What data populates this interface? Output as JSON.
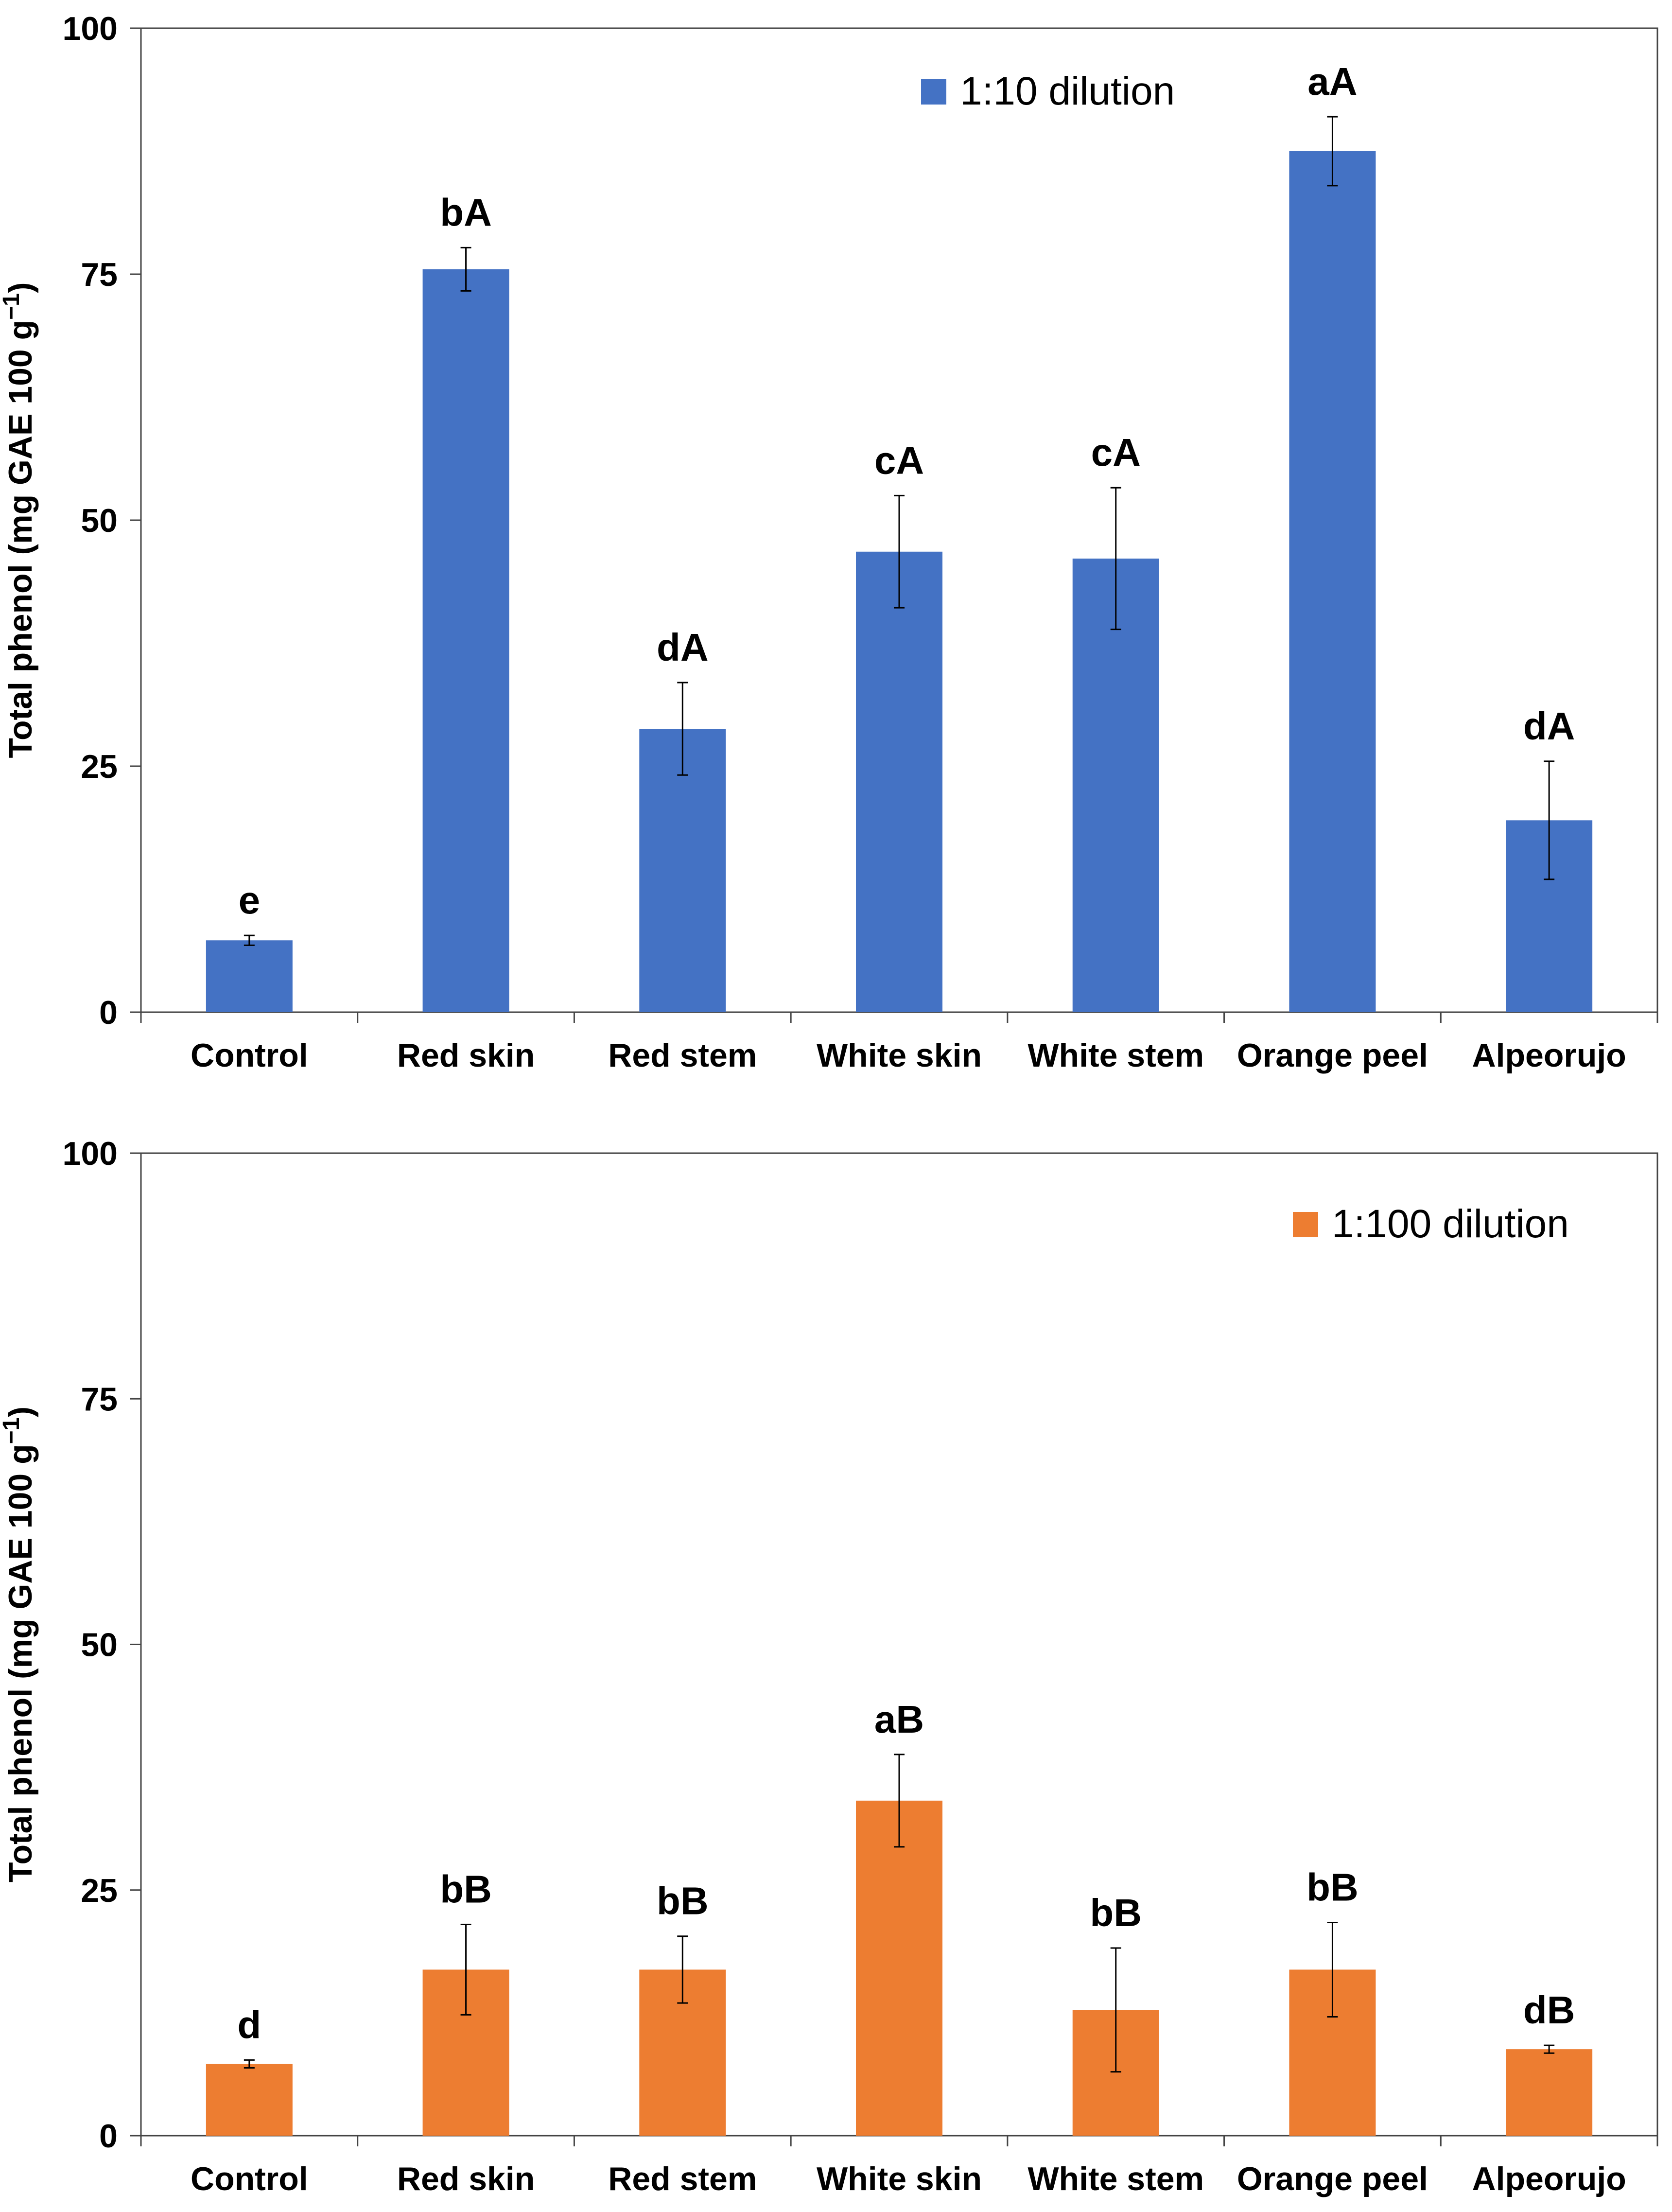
{
  "chart_data": [
    {
      "type": "bar",
      "categories": [
        "Control",
        "Red skin",
        "Red stem",
        "White skin",
        "White stem",
        "Orange peel",
        "Alpeorujo"
      ],
      "series": [
        {
          "name": "1:10 dilution",
          "color": "#4472C4",
          "values": [
            7.3,
            75.5,
            28.8,
            46.8,
            46.1,
            87.5,
            19.5
          ],
          "errors": [
            0.5,
            2.2,
            4.7,
            5.7,
            7.2,
            3.5,
            6.0
          ],
          "labels": [
            "e",
            "bA",
            "dA",
            "cA",
            "cA",
            "aA",
            "dA"
          ]
        }
      ],
      "ylabel": "Total phenol (mg GAE 100 g",
      "ylabel_sup": "−1",
      "ylabel_close": ")",
      "ylim": [
        0,
        100
      ],
      "yticks": [
        "0",
        "25",
        "50",
        "75",
        "100"
      ],
      "legend": "top-right"
    },
    {
      "type": "bar",
      "categories": [
        "Control",
        "Red skin",
        "Red stem",
        "White skin",
        "White stem",
        "Orange peel",
        "Alpeorujo"
      ],
      "series": [
        {
          "name": "1:100 dilution",
          "color": "#ED7D31",
          "values": [
            7.3,
            16.9,
            16.9,
            34.1,
            12.8,
            16.9,
            8.8
          ],
          "errors": [
            0.4,
            4.6,
            3.4,
            4.7,
            6.3,
            4.8,
            0.4
          ],
          "labels": [
            "d",
            "bB",
            "bB",
            "aB",
            "bB",
            "bB",
            "dB"
          ]
        }
      ],
      "ylabel": "Total phenol (mg GAE 100 g",
      "ylabel_sup": "−1",
      "ylabel_close": ")",
      "ylim": [
        0,
        100
      ],
      "yticks": [
        "0",
        "25",
        "50",
        "75",
        "100"
      ],
      "legend": "top-right"
    }
  ]
}
